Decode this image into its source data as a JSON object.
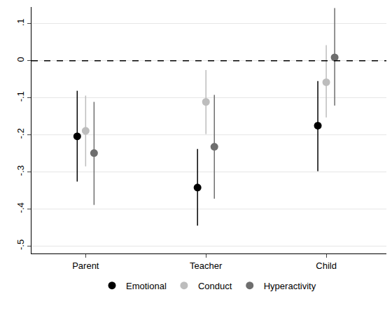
{
  "chart_data": {
    "type": "dot_whisker",
    "categories": [
      "Parent",
      "Teacher",
      "Child"
    ],
    "series": [
      {
        "name": "Emotional",
        "color": "#000000",
        "values": [
          -0.204,
          -0.342,
          -0.175
        ],
        "ci_lower": [
          -0.326,
          -0.445,
          -0.298
        ],
        "ci_upper": [
          -0.081,
          -0.238,
          -0.055
        ]
      },
      {
        "name": "Conduct",
        "color": "#bdbdbd",
        "values": [
          -0.189,
          -0.111,
          -0.058
        ],
        "ci_lower": [
          -0.285,
          -0.198,
          -0.153
        ],
        "ci_upper": [
          -0.094,
          -0.025,
          0.042
        ]
      },
      {
        "name": "Hyperactivity",
        "color": "#6e6e6e",
        "values": [
          -0.249,
          -0.232,
          0.009
        ],
        "ci_lower": [
          -0.389,
          -0.372,
          -0.121
        ],
        "ci_upper": [
          -0.111,
          -0.092,
          0.142
        ]
      }
    ],
    "ylim": [
      -0.52,
      0.145
    ],
    "yticks": [
      {
        "value": -0.5,
        "label": "-.5"
      },
      {
        "value": -0.4,
        "label": "-.4"
      },
      {
        "value": -0.3,
        "label": "-.3"
      },
      {
        "value": -0.2,
        "label": "-.2"
      },
      {
        "value": -0.1,
        "label": "-.1"
      },
      0,
      {
        "value": 0.1,
        "label": ".1"
      }
    ],
    "hline": 0,
    "grid": true,
    "legend": "bottom",
    "marker": "circle"
  }
}
